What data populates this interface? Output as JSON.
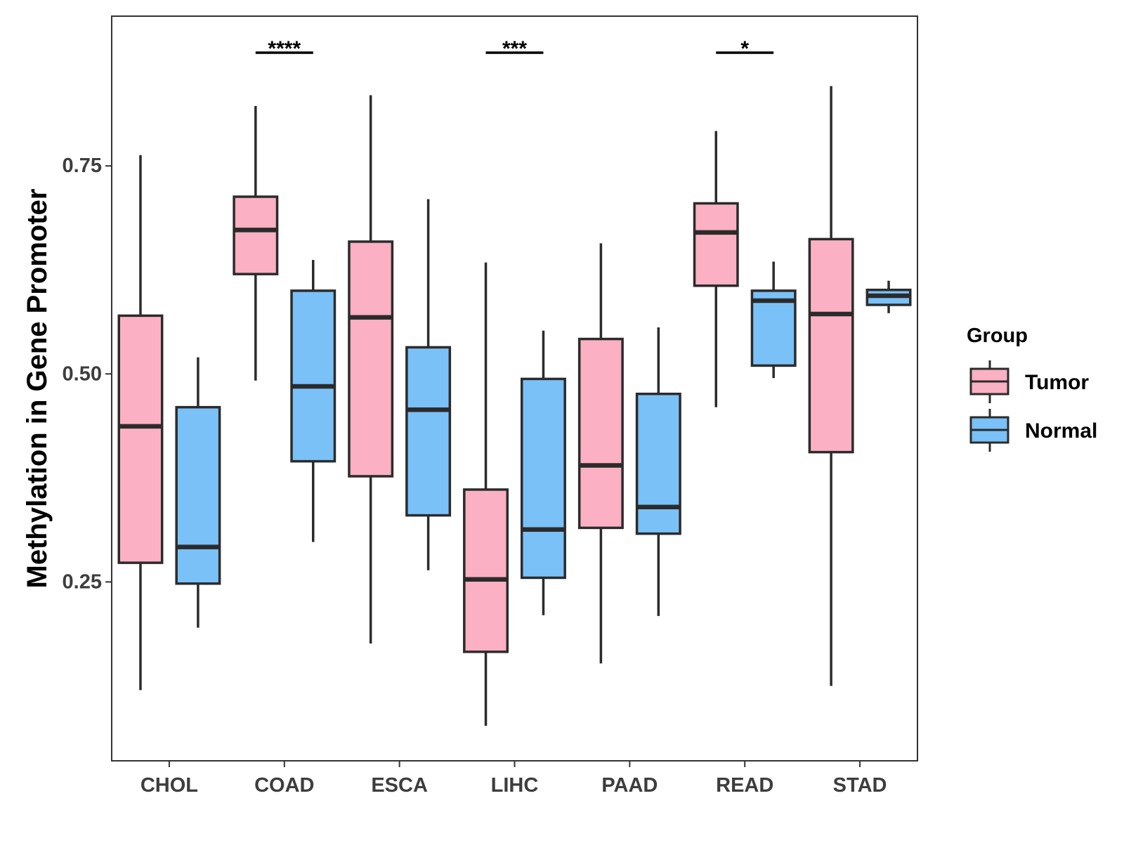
{
  "chart_data": {
    "type": "boxplot",
    "title": "",
    "xlabel": "",
    "ylabel": "Methylation in Gene Promoter",
    "ylim": [
      0.035,
      0.93
    ],
    "yticks": [
      0.25,
      0.5,
      0.75
    ],
    "ytick_labels": [
      "0.25",
      "0.50",
      "0.75"
    ],
    "grid": false,
    "categories": [
      "CHOL",
      "COAD",
      "ESCA",
      "LIHC",
      "PAAD",
      "READ",
      "STAD"
    ],
    "legend": {
      "title": "Group",
      "position": "right",
      "entries": [
        {
          "name": "Tumor",
          "color": "#FBB0C3"
        },
        {
          "name": "Normal",
          "color": "#7AC1F7"
        }
      ]
    },
    "series": [
      {
        "name": "Tumor",
        "color": "#FBB0C3",
        "boxes": [
          {
            "category": "CHOL",
            "min": 0.12,
            "q1": 0.273,
            "median": 0.437,
            "q3": 0.57,
            "max": 0.763
          },
          {
            "category": "COAD",
            "min": 0.492,
            "q1": 0.62,
            "median": 0.673,
            "q3": 0.713,
            "max": 0.822
          },
          {
            "category": "ESCA",
            "min": 0.176,
            "q1": 0.377,
            "median": 0.568,
            "q3": 0.659,
            "max": 0.835
          },
          {
            "category": "LIHC",
            "min": 0.077,
            "q1": 0.166,
            "median": 0.253,
            "q3": 0.361,
            "max": 0.634
          },
          {
            "category": "PAAD",
            "min": 0.152,
            "q1": 0.315,
            "median": 0.39,
            "q3": 0.542,
            "max": 0.657
          },
          {
            "category": "READ",
            "min": 0.46,
            "q1": 0.606,
            "median": 0.67,
            "q3": 0.705,
            "max": 0.792
          },
          {
            "category": "STAD",
            "min": 0.125,
            "q1": 0.406,
            "median": 0.572,
            "q3": 0.662,
            "max": 0.846
          }
        ]
      },
      {
        "name": "Normal",
        "color": "#7AC1F7",
        "boxes": [
          {
            "category": "CHOL",
            "min": 0.195,
            "q1": 0.248,
            "median": 0.292,
            "q3": 0.46,
            "max": 0.52
          },
          {
            "category": "COAD",
            "min": 0.298,
            "q1": 0.395,
            "median": 0.485,
            "q3": 0.6,
            "max": 0.637
          },
          {
            "category": "ESCA",
            "min": 0.264,
            "q1": 0.33,
            "median": 0.457,
            "q3": 0.532,
            "max": 0.71
          },
          {
            "category": "LIHC",
            "min": 0.21,
            "q1": 0.255,
            "median": 0.313,
            "q3": 0.494,
            "max": 0.552
          },
          {
            "category": "PAAD",
            "min": 0.209,
            "q1": 0.308,
            "median": 0.34,
            "q3": 0.476,
            "max": 0.556
          },
          {
            "category": "READ",
            "min": 0.495,
            "q1": 0.51,
            "median": 0.588,
            "q3": 0.6,
            "max": 0.635
          },
          {
            "category": "STAD",
            "min": 0.573,
            "q1": 0.583,
            "median": 0.594,
            "q3": 0.601,
            "max": 0.612
          }
        ]
      }
    ],
    "annotations": [
      {
        "category": "COAD",
        "label": "****"
      },
      {
        "category": "LIHC",
        "label": "***"
      },
      {
        "category": "READ",
        "label": "*"
      }
    ]
  }
}
